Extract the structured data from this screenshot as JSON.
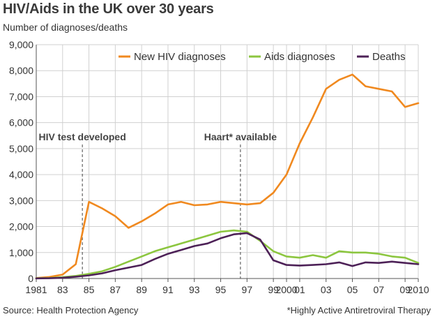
{
  "header": {
    "title": "HIV/Aids in the UK over 30 years",
    "subtitle": "Number of diagnoses/deaths"
  },
  "footer": {
    "source": "Source: Health Protection Agency",
    "footnote": "*Highly Active Antiretroviral Therapy"
  },
  "chart_data": {
    "type": "line",
    "title": "HIV/Aids in the UK over 30 years",
    "ylabel": "Number of diagnoses/deaths",
    "xlabel": "",
    "xlim": [
      1981,
      2010
    ],
    "ylim": [
      0,
      9000
    ],
    "grid": true,
    "legend_position": "top-right",
    "x_tick_labels": [
      {
        "x": 1981,
        "label": "1981"
      },
      {
        "x": 1983,
        "label": "83"
      },
      {
        "x": 1985,
        "label": "85"
      },
      {
        "x": 1987,
        "label": "87"
      },
      {
        "x": 1989,
        "label": "89"
      },
      {
        "x": 1991,
        "label": "91"
      },
      {
        "x": 1993,
        "label": "93"
      },
      {
        "x": 1995,
        "label": "95"
      },
      {
        "x": 1997,
        "label": "97"
      },
      {
        "x": 1999,
        "label": "99"
      },
      {
        "x": 2000,
        "label": "2000"
      },
      {
        "x": 2001,
        "label": "01"
      },
      {
        "x": 2003,
        "label": "03"
      },
      {
        "x": 2005,
        "label": "05"
      },
      {
        "x": 2007,
        "label": "07"
      },
      {
        "x": 2009,
        "label": "09"
      },
      {
        "x": 2010,
        "label": "2010"
      }
    ],
    "y_ticks": [
      0,
      1000,
      2000,
      3000,
      4000,
      5000,
      6000,
      7000,
      8000,
      9000
    ],
    "y_tick_labels": [
      "0",
      "1,000",
      "2,000",
      "3,000",
      "4,000",
      "5,000",
      "6,000",
      "7,000",
      "8,000",
      "9,000"
    ],
    "x": [
      1981,
      1982,
      1983,
      1984,
      1985,
      1986,
      1987,
      1988,
      1989,
      1990,
      1991,
      1992,
      1993,
      1994,
      1995,
      1996,
      1997,
      1998,
      1999,
      2000,
      2001,
      2002,
      2003,
      2004,
      2005,
      2006,
      2007,
      2008,
      2009,
      2010
    ],
    "series": [
      {
        "name": "New HIV diagnoses",
        "color": "#f0891f",
        "values": [
          20,
          60,
          150,
          550,
          2950,
          2700,
          2400,
          1950,
          2200,
          2500,
          2850,
          2950,
          2820,
          2850,
          2950,
          2900,
          2850,
          2900,
          3300,
          4000,
          5200,
          6200,
          7300,
          7650,
          7850,
          7400,
          7300,
          7200,
          6600,
          6750
        ]
      },
      {
        "name": "Aids diagnoses",
        "color": "#8cc63f",
        "values": [
          10,
          20,
          50,
          100,
          180,
          280,
          450,
          650,
          850,
          1050,
          1200,
          1350,
          1500,
          1650,
          1800,
          1850,
          1800,
          1450,
          1050,
          850,
          800,
          900,
          800,
          1050,
          1000,
          1000,
          950,
          850,
          800,
          600
        ]
      },
      {
        "name": "Deaths",
        "color": "#4d2157",
        "values": [
          5,
          10,
          30,
          70,
          120,
          200,
          320,
          420,
          520,
          750,
          950,
          1100,
          1250,
          1350,
          1550,
          1700,
          1750,
          1500,
          700,
          520,
          500,
          520,
          550,
          620,
          480,
          620,
          600,
          650,
          600,
          550
        ]
      }
    ],
    "annotations": [
      {
        "x": 1984.5,
        "label": "HIV test developed"
      },
      {
        "x": 1996.5,
        "label": "Haart* available"
      }
    ]
  }
}
